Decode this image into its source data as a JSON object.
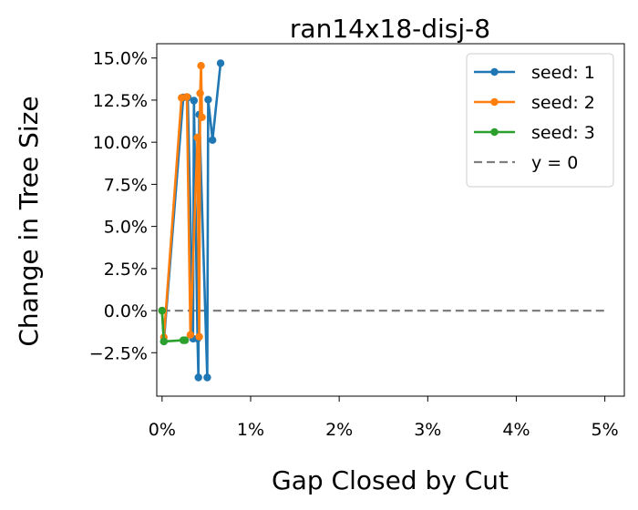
{
  "chart_data": {
    "type": "line",
    "title": "ran14x18-disj-8",
    "xlabel": "Gap Closed by Cut",
    "ylabel": "Change in Tree Size",
    "xlim": [
      -0.0006,
      0.0522
    ],
    "ylim": [
      -0.0508,
      0.1585
    ],
    "x_ticks": [
      0,
      0.01,
      0.02,
      0.03,
      0.04,
      0.05
    ],
    "x_tick_labels": [
      "0%",
      "1%",
      "2%",
      "3%",
      "4%",
      "5%"
    ],
    "y_ticks": [
      -0.025,
      0,
      0.025,
      0.05,
      0.075,
      0.1,
      0.125,
      0.15
    ],
    "y_tick_labels": [
      "−2.5%",
      "0.0%",
      "2.5%",
      "5.0%",
      "7.5%",
      "10.0%",
      "12.5%",
      "15.0%"
    ],
    "grid": false,
    "legend_position": "top-right",
    "series": [
      {
        "name": "seed: 1",
        "color": "#1f77b4",
        "points": [
          [
            0.0,
            0.0
          ],
          [
            0.0002,
            -0.0183
          ],
          [
            0.0024,
            0.1266
          ],
          [
            0.0029,
            0.1266
          ],
          [
            0.0035,
            -0.0167
          ],
          [
            0.0036,
            0.1247
          ],
          [
            0.004,
            -0.0167
          ],
          [
            0.0041,
            -0.0397
          ],
          [
            0.0042,
            0.1164
          ],
          [
            0.0051,
            -0.0397
          ],
          [
            0.0052,
            0.1253
          ],
          [
            0.0057,
            0.1013
          ],
          [
            0.0066,
            0.1469
          ]
        ]
      },
      {
        "name": "seed: 2",
        "color": "#ff7f0e",
        "points": [
          [
            0.0,
            0.0
          ],
          [
            0.0002,
            -0.0158
          ],
          [
            0.0022,
            0.1264
          ],
          [
            0.0028,
            0.1269
          ],
          [
            0.0032,
            -0.0144
          ],
          [
            0.004,
            0.1028
          ],
          [
            0.0042,
            -0.0155
          ],
          [
            0.0043,
            0.129
          ],
          [
            0.0044,
            0.1454
          ],
          [
            0.0045,
            0.1148
          ]
        ]
      },
      {
        "name": "seed: 3",
        "color": "#2ca02c",
        "points": [
          [
            0.0,
            0.0
          ],
          [
            0.0002,
            -0.0183
          ],
          [
            0.0024,
            -0.0176
          ],
          [
            0.0026,
            -0.0176
          ]
        ]
      },
      {
        "name": "y = 0",
        "color": "#7f7f7f",
        "dashed": true,
        "points": [
          [
            0.0,
            0.0
          ],
          [
            0.05,
            0.0
          ]
        ]
      }
    ]
  }
}
